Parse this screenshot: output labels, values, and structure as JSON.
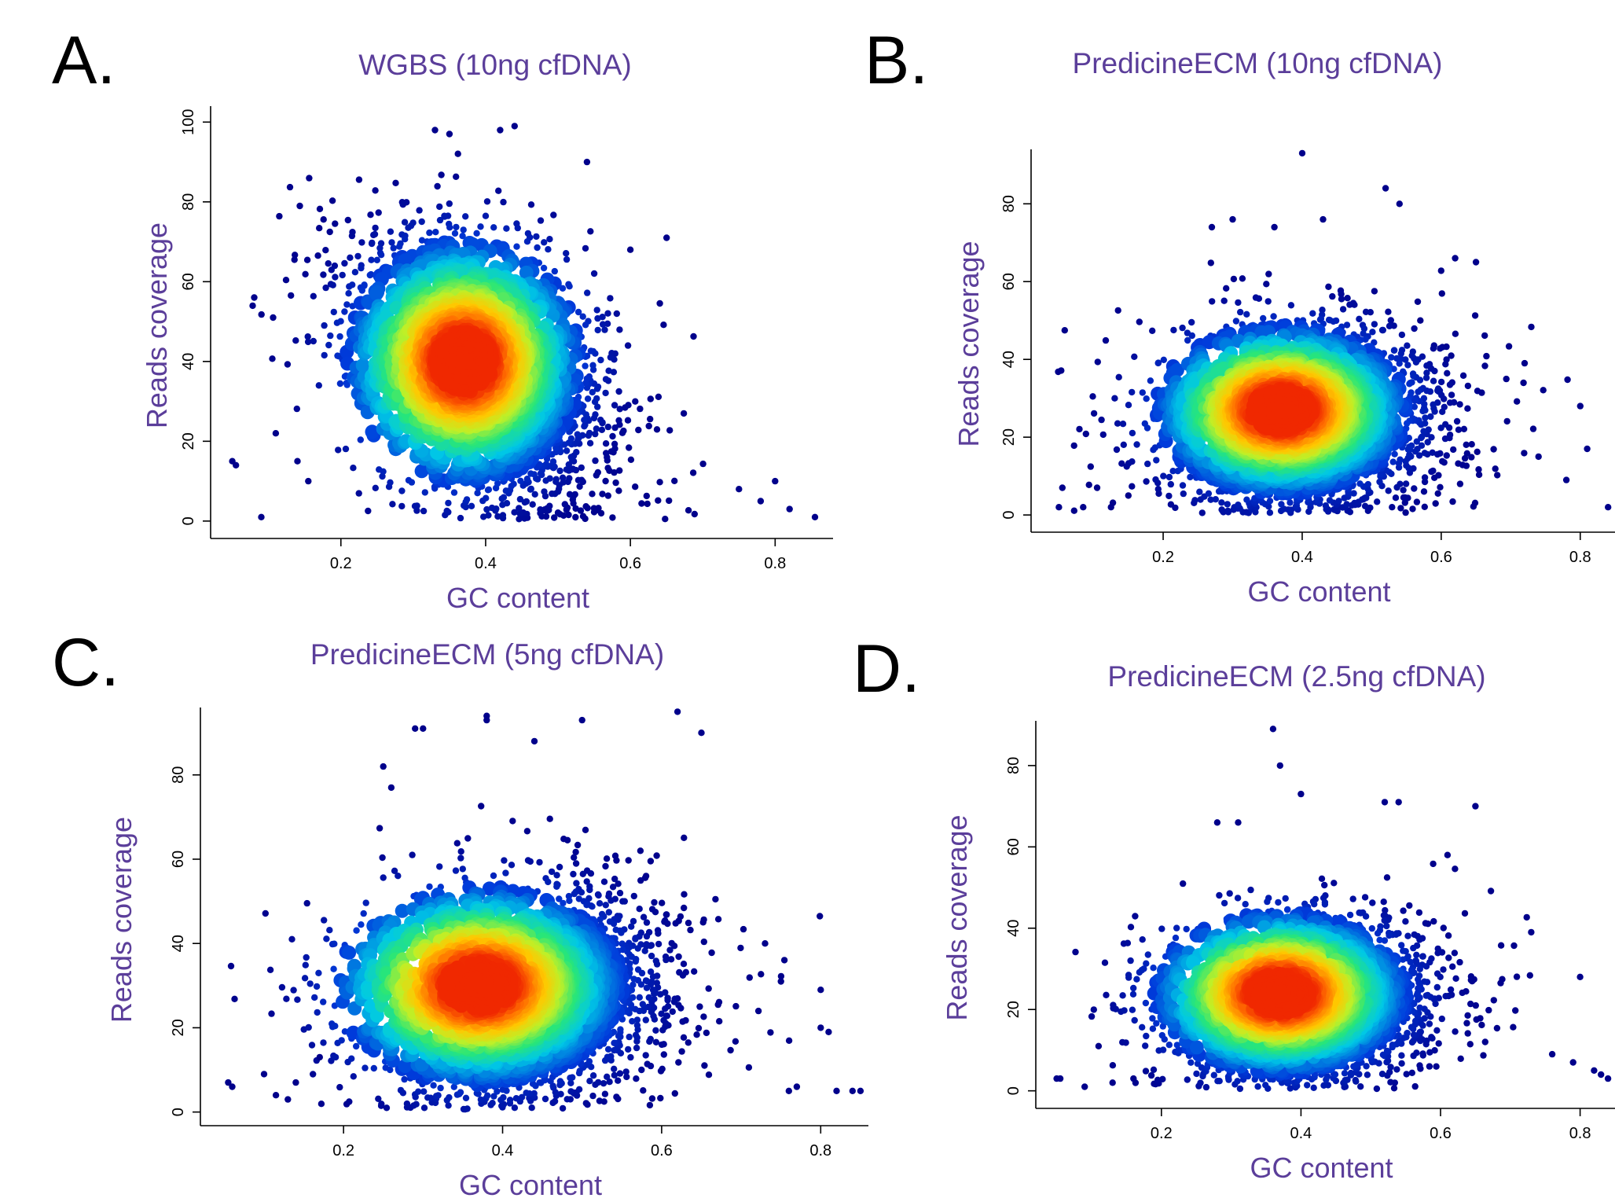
{
  "figure": {
    "panels": [
      {
        "letter": "A.",
        "chart_data": {
          "type": "scatter",
          "title": "WGBS (10ng cfDNA)",
          "xlabel": "GC content",
          "ylabel": "Reads coverage",
          "xlim": [
            0.02,
            0.88
          ],
          "ylim": [
            -2,
            104
          ],
          "xticks": [
            "0.2",
            "0.4",
            "0.6",
            "0.8"
          ],
          "xtick_values": [
            0.2,
            0.4,
            0.6,
            0.8
          ],
          "yticks": [
            "0",
            "20",
            "40",
            "60",
            "80",
            "100"
          ],
          "ytick_values": [
            0,
            20,
            40,
            60,
            80,
            100
          ],
          "density": {
            "cx": 0.39,
            "cy": 38,
            "sx": 0.09,
            "sy": 17,
            "rho": -0.35,
            "hot": [
              0.37,
              40
            ],
            "n_points": 2600
          },
          "outliers": [
            [
              0.05,
              15
            ],
            [
              0.055,
              14
            ],
            [
              0.09,
              1
            ],
            [
              0.11,
              22
            ],
            [
              0.14,
              15
            ],
            [
              0.155,
              10
            ],
            [
              0.65,
              71
            ],
            [
              0.6,
              68
            ],
            [
              0.82,
              3
            ],
            [
              0.855,
              1
            ],
            [
              0.8,
              10
            ],
            [
              0.78,
              5
            ],
            [
              0.75,
              8
            ],
            [
              0.33,
              98
            ],
            [
              0.35,
              97
            ],
            [
              0.42,
              98
            ],
            [
              0.44,
              99
            ],
            [
              0.54,
              90
            ]
          ]
        }
      },
      {
        "letter": "B.",
        "chart_data": {
          "type": "scatter",
          "title": "PredicineECM (10ng cfDNA)",
          "xlabel": "GC content",
          "ylabel": "Reads coverage",
          "xlim": [
            0.01,
            0.85
          ],
          "ylim": [
            -2,
            94
          ],
          "xticks": [
            "0.2",
            "0.4",
            "0.6",
            "0.8"
          ],
          "xtick_values": [
            0.2,
            0.4,
            0.6,
            0.8
          ],
          "yticks": [
            "0",
            "20",
            "40",
            "60",
            "80"
          ],
          "ytick_values": [
            0,
            20,
            40,
            60,
            80
          ],
          "density": {
            "cx": 0.4,
            "cy": 25,
            "sx": 0.1,
            "sy": 12,
            "rho": 0.05,
            "hot": [
              0.37,
              27
            ],
            "n_points": 2600
          },
          "outliers": [
            [
              0.05,
              2
            ],
            [
              0.055,
              7
            ],
            [
              0.085,
              2
            ],
            [
              0.105,
              7
            ],
            [
              0.125,
              2
            ],
            [
              0.15,
              5
            ],
            [
              0.4,
              93
            ],
            [
              0.36,
              74
            ],
            [
              0.43,
              76
            ],
            [
              0.52,
              84
            ],
            [
              0.54,
              80
            ],
            [
              0.27,
              74
            ],
            [
              0.3,
              76
            ],
            [
              0.57,
              50
            ],
            [
              0.72,
              39
            ],
            [
              0.74,
              15
            ],
            [
              0.8,
              28
            ],
            [
              0.81,
              17
            ],
            [
              0.78,
              9
            ],
            [
              0.84,
              2
            ],
            [
              0.62,
              66
            ],
            [
              0.65,
              65
            ]
          ]
        }
      },
      {
        "letter": "C.",
        "chart_data": {
          "type": "scatter",
          "title": "PredicineECM (5ng cfDNA)",
          "xlabel": "GC content",
          "ylabel": "Reads coverage",
          "xlim": [
            0.02,
            0.86
          ],
          "ylim": [
            -1,
            96
          ],
          "xticks": [
            "0.2",
            "0.4",
            "0.6",
            "0.8"
          ],
          "xtick_values": [
            0.2,
            0.4,
            0.6,
            0.8
          ],
          "yticks": [
            "0",
            "20",
            "40",
            "60",
            "80"
          ],
          "ytick_values": [
            0,
            20,
            40,
            60,
            80
          ],
          "density": {
            "cx": 0.42,
            "cy": 28,
            "sx": 0.1,
            "sy": 13,
            "rho": 0.05,
            "hot": [
              0.37,
              30
            ],
            "n_points": 2600
          },
          "outliers": [
            [
              0.055,
              7
            ],
            [
              0.06,
              6
            ],
            [
              0.1,
              9
            ],
            [
              0.115,
              4
            ],
            [
              0.13,
              3
            ],
            [
              0.14,
              7
            ],
            [
              0.17,
              13
            ],
            [
              0.38,
              93
            ],
            [
              0.38,
              94
            ],
            [
              0.44,
              88
            ],
            [
              0.5,
              93
            ],
            [
              0.62,
              95
            ],
            [
              0.65,
              90
            ],
            [
              0.29,
              91
            ],
            [
              0.3,
              91
            ],
            [
              0.25,
              82
            ],
            [
              0.26,
              77
            ],
            [
              0.8,
              29
            ],
            [
              0.8,
              20
            ],
            [
              0.81,
              19
            ],
            [
              0.82,
              5
            ],
            [
              0.84,
              5
            ],
            [
              0.85,
              5
            ],
            [
              0.76,
              5
            ],
            [
              0.77,
              6
            ],
            [
              0.73,
              40
            ],
            [
              0.75,
              31
            ]
          ]
        }
      },
      {
        "letter": "D.",
        "chart_data": {
          "type": "scatter",
          "title": "PredicineECM (2.5ng cfDNA)",
          "xlabel": "GC content",
          "ylabel": "Reads coverage",
          "xlim": [
            0.02,
            0.85
          ],
          "ylim": [
            -2,
            91
          ],
          "xticks": [
            "0.2",
            "0.4",
            "0.6",
            "0.8"
          ],
          "xtick_values": [
            0.2,
            0.4,
            0.6,
            0.8
          ],
          "yticks": [
            "0",
            "20",
            "40",
            "60",
            "80"
          ],
          "ytick_values": [
            0,
            20,
            40,
            60,
            80
          ],
          "density": {
            "cx": 0.4,
            "cy": 22,
            "sx": 0.1,
            "sy": 11,
            "rho": 0.05,
            "hot": [
              0.37,
              24
            ],
            "n_points": 2400
          },
          "outliers": [
            [
              0.05,
              3
            ],
            [
              0.055,
              3
            ],
            [
              0.09,
              1
            ],
            [
              0.11,
              11
            ],
            [
              0.13,
              2
            ],
            [
              0.16,
              3
            ],
            [
              0.36,
              89
            ],
            [
              0.37,
              80
            ],
            [
              0.4,
              73
            ],
            [
              0.28,
              66
            ],
            [
              0.31,
              66
            ],
            [
              0.52,
              71
            ],
            [
              0.54,
              71
            ],
            [
              0.65,
              70
            ],
            [
              0.61,
              58
            ],
            [
              0.8,
              28
            ],
            [
              0.79,
              7
            ],
            [
              0.82,
              5
            ],
            [
              0.83,
              4
            ],
            [
              0.84,
              3
            ],
            [
              0.76,
              9
            ],
            [
              0.73,
              39
            ]
          ]
        }
      }
    ]
  }
}
